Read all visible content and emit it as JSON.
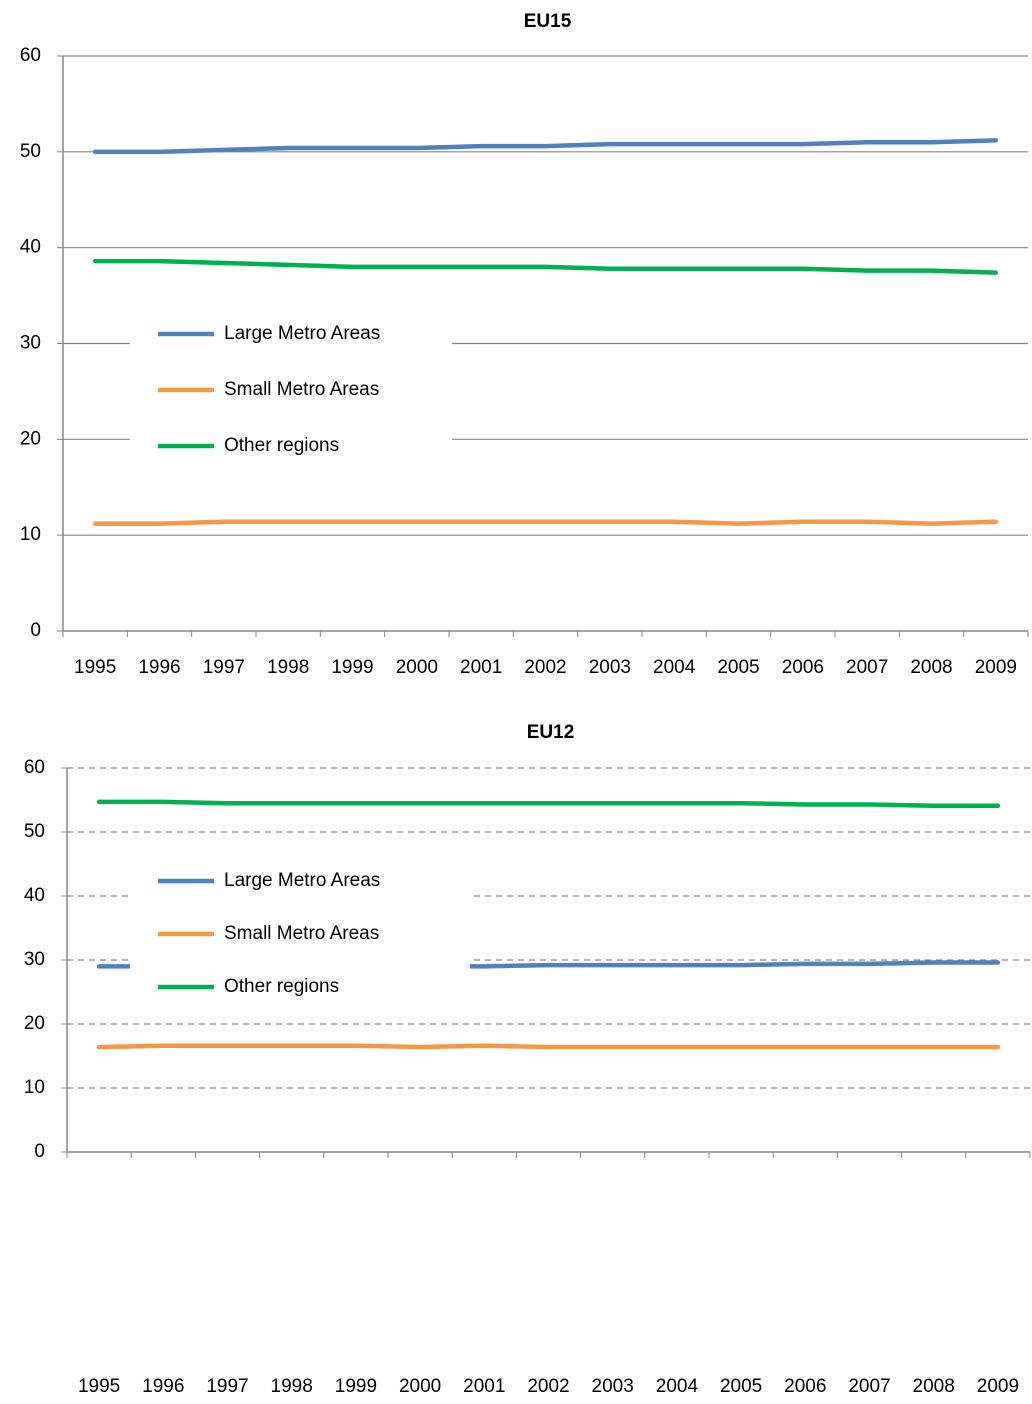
{
  "chart_data": [
    {
      "type": "line",
      "title": "EU15",
      "categories": [
        "1995",
        "1996",
        "1997",
        "1998",
        "1999",
        "2000",
        "2001",
        "2002",
        "2003",
        "2004",
        "2005",
        "2006",
        "2007",
        "2008",
        "2009"
      ],
      "series": [
        {
          "name": "Large Metro Areas",
          "color": "#4f81bd",
          "values": [
            50.0,
            50.0,
            50.2,
            50.4,
            50.4,
            50.4,
            50.6,
            50.6,
            50.8,
            50.8,
            50.8,
            50.8,
            51.0,
            51.0,
            51.2
          ]
        },
        {
          "name": "Small Metro Areas",
          "color": "#f79646",
          "values": [
            11.2,
            11.2,
            11.4,
            11.4,
            11.4,
            11.4,
            11.4,
            11.4,
            11.4,
            11.4,
            11.2,
            11.4,
            11.4,
            11.2,
            11.4
          ]
        },
        {
          "name": "Other regions",
          "color": "#00b050",
          "values": [
            38.6,
            38.6,
            38.4,
            38.2,
            38.0,
            38.0,
            38.0,
            38.0,
            37.8,
            37.8,
            37.8,
            37.8,
            37.6,
            37.6,
            37.4
          ]
        }
      ],
      "ylim": [
        0,
        60
      ],
      "yticks": [
        0,
        10,
        20,
        30,
        40,
        50,
        60
      ],
      "grid": true,
      "grid_style": "solid",
      "legend": "left"
    },
    {
      "type": "line",
      "title": "EU12",
      "categories": [
        "1995",
        "1996",
        "1997",
        "1998",
        "1999",
        "2000",
        "2001",
        "2002",
        "2003",
        "2004",
        "2005",
        "2006",
        "2007",
        "2008",
        "2009"
      ],
      "series": [
        {
          "name": "Large Metro Areas",
          "color": "#4f81bd",
          "values": [
            29.0,
            29.0,
            29.0,
            29.0,
            29.0,
            29.0,
            29.0,
            29.2,
            29.2,
            29.2,
            29.2,
            29.4,
            29.4,
            29.6,
            29.6
          ]
        },
        {
          "name": "Small Metro Areas",
          "color": "#f79646",
          "values": [
            16.4,
            16.6,
            16.6,
            16.6,
            16.6,
            16.4,
            16.6,
            16.4,
            16.4,
            16.4,
            16.4,
            16.4,
            16.4,
            16.4,
            16.4
          ]
        },
        {
          "name": "Other regions",
          "color": "#00b050",
          "values": [
            54.7,
            54.7,
            54.5,
            54.5,
            54.5,
            54.5,
            54.5,
            54.5,
            54.5,
            54.5,
            54.5,
            54.3,
            54.3,
            54.1,
            54.1
          ]
        }
      ],
      "ylim": [
        0,
        60
      ],
      "yticks": [
        0,
        10,
        20,
        30,
        40,
        50,
        60
      ],
      "grid": true,
      "grid_style": "dashed",
      "legend": "left"
    }
  ]
}
